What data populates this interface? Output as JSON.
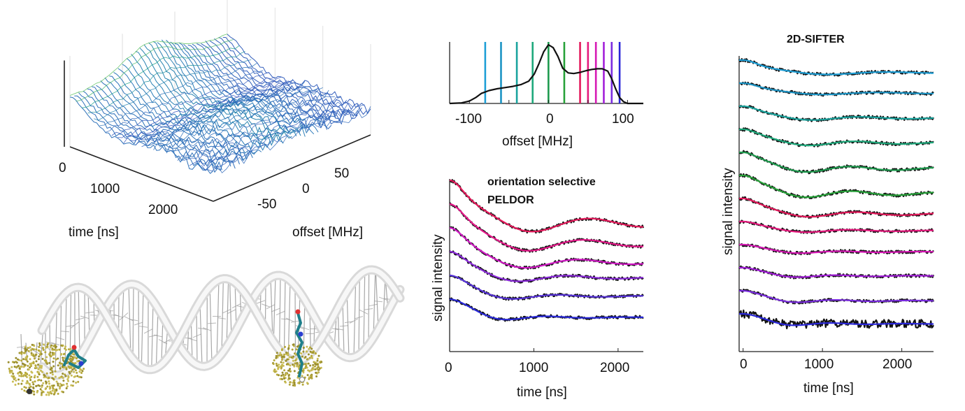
{
  "chart_data": [
    {
      "type": "surface3d",
      "xlabel": "time [ns]",
      "ylabel": "offset [MHz]",
      "x_ticks": [
        "0",
        "1000",
        "2000"
      ],
      "y_ticks": [
        "-50",
        "0",
        "50"
      ],
      "xlim": [
        0,
        2400
      ],
      "ylim": [
        -80,
        80
      ],
      "colormap": [
        "#3b4cc0",
        "#2c7fb8",
        "#1fa187",
        "#7ad151",
        "#fde725"
      ]
    },
    {
      "type": "line",
      "xlabel": "offset [MHz]",
      "x_ticks": [
        "-100",
        "0",
        "100"
      ],
      "xlim": [
        -125,
        120
      ],
      "spectrum": {
        "x": [
          -125,
          -110,
          -100,
          -92,
          -85,
          -75,
          -65,
          -55,
          -45,
          -35,
          -25,
          -18,
          -12,
          -6,
          0,
          6,
          12,
          18,
          25,
          32,
          40,
          48,
          55,
          62,
          68,
          75,
          80,
          85,
          90,
          95,
          100,
          110,
          120
        ],
        "y": [
          0.0,
          0.01,
          0.04,
          0.1,
          0.17,
          0.22,
          0.25,
          0.27,
          0.29,
          0.32,
          0.38,
          0.5,
          0.68,
          0.88,
          1.0,
          0.95,
          0.8,
          0.6,
          0.52,
          0.51,
          0.53,
          0.56,
          0.58,
          0.59,
          0.59,
          0.55,
          0.42,
          0.25,
          0.1,
          0.03,
          0.0,
          0.0,
          0.0
        ]
      },
      "markers": [
        {
          "offset": -80,
          "color": "#1f9fd6"
        },
        {
          "offset": -60,
          "color": "#1b93c4"
        },
        {
          "offset": -40,
          "color": "#1aa49e"
        },
        {
          "offset": -20,
          "color": "#1ea87b"
        },
        {
          "offset": 0,
          "color": "#1f9b4f"
        },
        {
          "offset": 20,
          "color": "#28a23a"
        },
        {
          "offset": 40,
          "color": "#e3195b"
        },
        {
          "offset": 50,
          "color": "#e5197d"
        },
        {
          "offset": 60,
          "color": "#d619b5"
        },
        {
          "offset": 70,
          "color": "#a31fd9"
        },
        {
          "offset": 80,
          "color": "#7b2de0"
        },
        {
          "offset": 90,
          "color": "#2a27d9"
        }
      ]
    },
    {
      "type": "line",
      "title": "orientation selective\nPELDOR",
      "xlabel": "time [ns]",
      "ylabel": "signal intensity",
      "x_ticks": [
        "0",
        "1000",
        "2000"
      ],
      "xlim": [
        0,
        2300
      ],
      "traces": [
        {
          "color": "#e5195b",
          "depth": 1.0,
          "period": 1350,
          "damp": 700
        },
        {
          "color": "#e5198a",
          "depth": 0.92,
          "period": 1300,
          "damp": 600
        },
        {
          "color": "#d019c4",
          "depth": 0.8,
          "period": 1250,
          "damp": 500
        },
        {
          "color": "#8a2ad9",
          "depth": 0.6,
          "period": 1150,
          "damp": 420
        },
        {
          "color": "#5632d9",
          "depth": 0.48,
          "period": 1050,
          "damp": 350
        },
        {
          "color": "#2a2ad9",
          "depth": 0.42,
          "period": 950,
          "damp": 300
        }
      ]
    },
    {
      "type": "line",
      "title": "2D-SIFTER",
      "xlabel": "time [ns]",
      "ylabel": "signal intensity",
      "x_ticks": [
        "0",
        "1000",
        "2000"
      ],
      "xlim": [
        -50,
        2400
      ],
      "traces": [
        {
          "color": "#1f9fd6",
          "depth": 0.7,
          "period": 1500,
          "damp": 500
        },
        {
          "color": "#1b93c4",
          "depth": 0.55,
          "period": 1400,
          "damp": 500
        },
        {
          "color": "#1aa49e",
          "depth": 0.65,
          "period": 1200,
          "damp": 550
        },
        {
          "color": "#1ea87b",
          "depth": 0.75,
          "period": 1150,
          "damp": 600
        },
        {
          "color": "#1f9b4f",
          "depth": 0.9,
          "period": 1100,
          "damp": 650
        },
        {
          "color": "#28a23a",
          "depth": 1.0,
          "period": 1100,
          "damp": 650
        },
        {
          "color": "#e3195b",
          "depth": 0.85,
          "period": 1150,
          "damp": 600
        },
        {
          "color": "#e5197d",
          "depth": 0.5,
          "period": 1100,
          "damp": 500
        },
        {
          "color": "#d619b5",
          "depth": 0.4,
          "period": 1000,
          "damp": 450
        },
        {
          "color": "#a31fd9",
          "depth": 0.45,
          "period": 950,
          "damp": 400
        },
        {
          "color": "#7b2de0",
          "depth": 0.55,
          "period": 950,
          "damp": 380
        },
        {
          "color": "#2a27d9",
          "depth": 0.55,
          "period": 900,
          "damp": 350
        }
      ]
    }
  ]
}
